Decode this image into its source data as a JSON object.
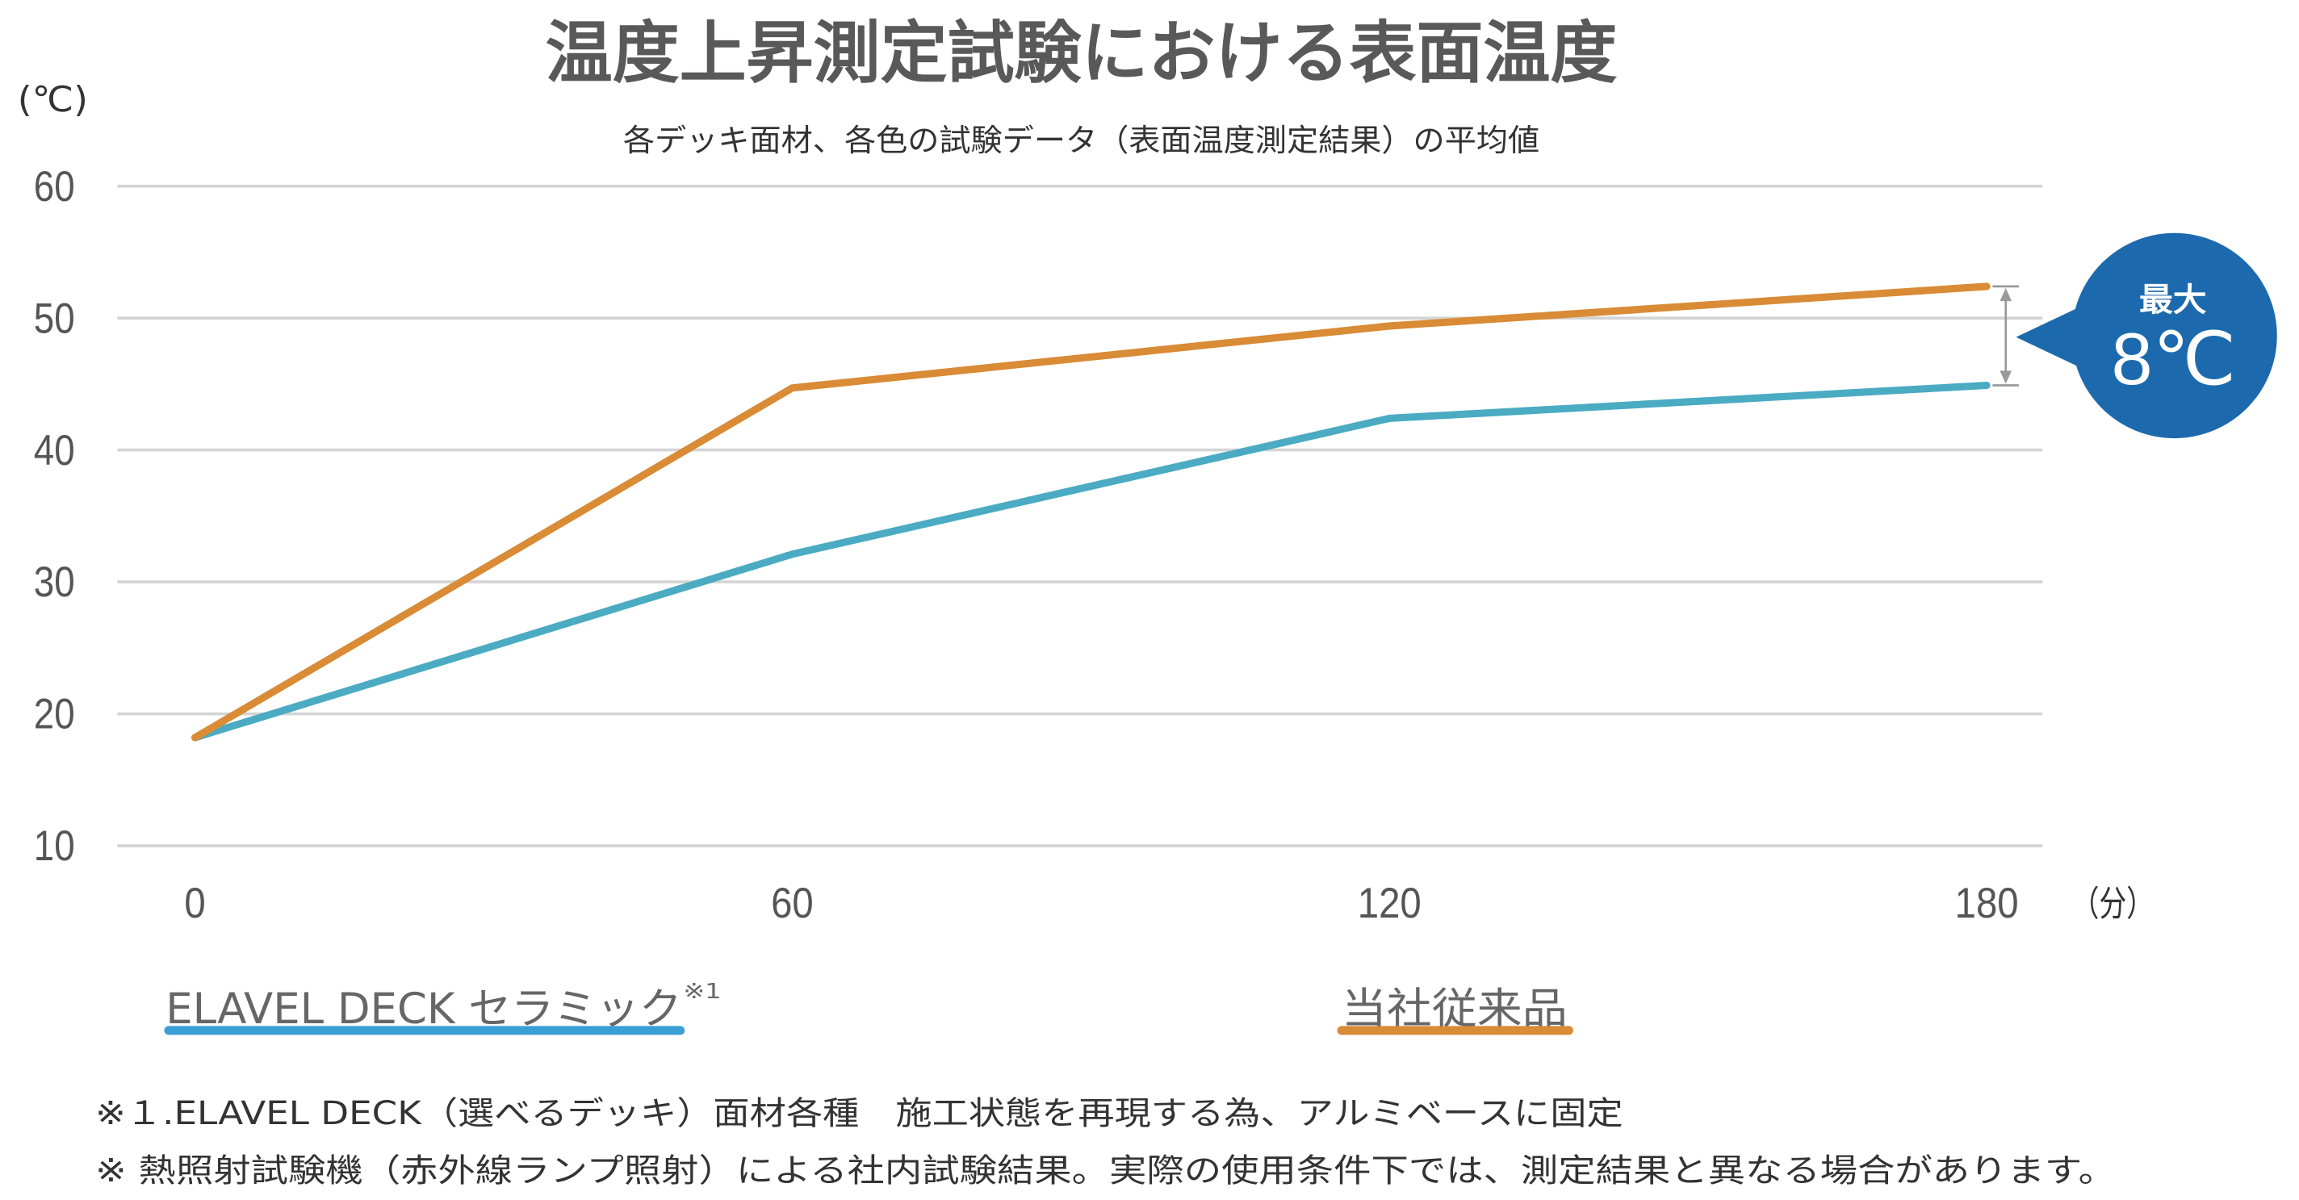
{
  "chart_data": {
    "type": "line",
    "title": "温度上昇測定試験における表面温度",
    "subtitle": "各デッキ面材、各色の試験データ（表面温度測定結果）の平均値",
    "ylabel": "(℃)",
    "xlabel": "（分）",
    "x": [
      0,
      60,
      120,
      180
    ],
    "xlim": [
      0,
      180
    ],
    "ylim": [
      10,
      60
    ],
    "xticks": [
      0,
      60,
      120,
      180
    ],
    "yticks": [
      10,
      20,
      30,
      40,
      50,
      60
    ],
    "grid": true,
    "legend_placement": "bottom",
    "series": [
      {
        "name": "ELAVEL DECK セラミック",
        "note": "※1",
        "values": [
          18.2,
          32.1,
          42.4,
          44.9
        ],
        "color": "#4aabc3",
        "legend_color": "#3b9fd6"
      },
      {
        "name": "当社従来品",
        "values": [
          18.2,
          44.7,
          49.4,
          52.4
        ],
        "color": "#d98b35",
        "legend_color": "#d98b35"
      }
    ],
    "annotation": {
      "label": "最大",
      "value": "8℃",
      "color": "#1c6aad",
      "bracket_color": "#9a9a9a"
    }
  },
  "footnotes": [
    "※１.ELAVEL DECK（選べるデッキ）面材各種　施工状態を再現する為、アルミベースに固定",
    "※ 熱照射試験機（赤外線ランプ照射）による社内試験結果。実際の使用条件下では、測定結果と異なる場合があります。"
  ]
}
